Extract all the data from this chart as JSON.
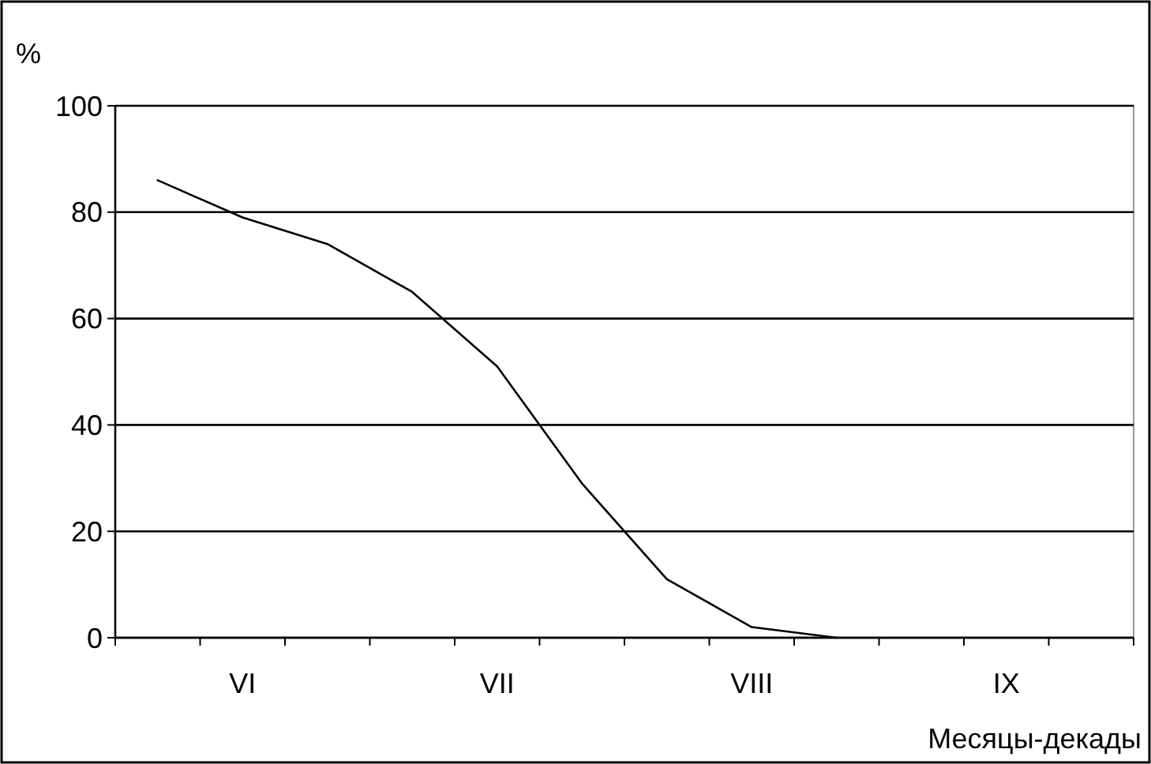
{
  "chart_data": {
    "type": "line",
    "ylabel": "%",
    "xlabel": "Месяцы-декады",
    "categories": [
      null,
      "VI",
      null,
      null,
      "VII",
      null,
      null,
      "VIII",
      null,
      null,
      "IX",
      null
    ],
    "values": [
      86,
      79,
      74,
      65,
      51,
      29,
      11,
      2,
      0,
      null,
      null,
      null
    ],
    "color": "#000000",
    "ylim": [
      0,
      100
    ],
    "yticks": [
      0,
      20,
      40,
      60,
      80,
      100
    ],
    "grid": "y",
    "marker": "none",
    "line_style": "solid"
  }
}
